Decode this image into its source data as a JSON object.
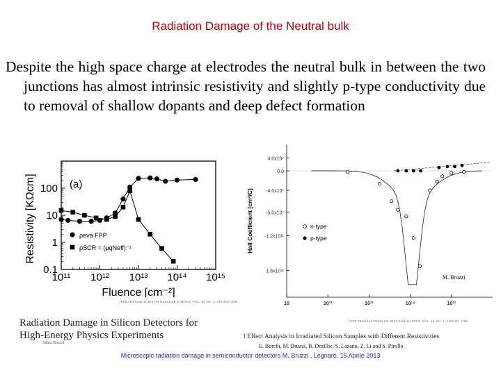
{
  "slide": {
    "title": "Radiation Damage of the Neutral bulk",
    "body": "Despite the high space charge at electrodes the neutral bulk in between the two junctions has almost intrinsic resistivity and slightly p-type conductivity due to removal of shallow dopants and deep defect formation",
    "footer": "Microscopic radiation damage in semiconductor detectors  M. Bruzzi , Legnaro, 15 Aprile 2013"
  },
  "colors": {
    "title": "#c00000",
    "footer": "#2a2aa0"
  },
  "left_paper": {
    "journal_header": "IEEE TRANSACTIONS ON NUCLEAR SCIENCE, VOL. 49, NO. 4, AUGUST 2002",
    "title_line1": "Radiation Damage in Silicon Detectors for",
    "title_line2": "High-Energy Physics Experiments",
    "author": "Mara Bruzzi"
  },
  "right_paper": {
    "journal_header": "IEEE TRANSACTIONS ON NUCLEAR SCIENCE, VOL. 46, NO. 4, AUGUST 1999",
    "title": "l Effect Analysis in Irradiated Silicon Samples with Different Resistivities",
    "authors": "E. Borchi, M. Bruzzi, B. Dezillie, S. Lazanu, Z. Li and S. Pirollo"
  },
  "chart_data": [
    {
      "type": "scatter",
      "panel_label": "(a)",
      "xlabel": "Fluence [cm⁻²]",
      "ylabel": "Resistivity [KΩcm]",
      "x_scale": "log",
      "y_scale": "log",
      "xlim": [
        100000000000.0,
        1000000000000000.0
      ],
      "ylim": [
        0.1,
        1000
      ],
      "x_ticks": [
        "10¹¹",
        "10¹²",
        "10¹³",
        "10¹⁴",
        "10¹⁵"
      ],
      "y_ticks": [
        "0.1",
        "1",
        "10",
        "100"
      ],
      "legend": {
        "placement": "bottom-left",
        "entries": [
          "ρeva FPP",
          "ρSCR = (μqNeff)⁻¹"
        ]
      },
      "series": [
        {
          "name": "ρeva FPP",
          "marker": "circle-filled",
          "x": [
            100000000000.0,
            150000000000.0,
            300000000000.0,
            600000000000.0,
            1000000000000.0,
            1500000000000.0,
            2500000000000.0,
            4000000000000.0,
            6000000000000.0,
            10000000000000.0,
            20000000000000.0,
            30000000000000.0,
            50000000000000.0,
            100000000000000.0,
            300000000000000.0
          ],
          "y": [
            7,
            6.5,
            6,
            6,
            6.5,
            8,
            12,
            40,
            110,
            230,
            240,
            220,
            180,
            200,
            210
          ]
        },
        {
          "name": "ρSCR = (μqNeff)⁻¹",
          "marker": "square-filled",
          "x": [
            100000000000.0,
            200000000000.0,
            400000000000.0,
            800000000000.0,
            1500000000000.0,
            2500000000000.0,
            4000000000000.0,
            6000000000000.0,
            10000000000000.0,
            20000000000000.0,
            40000000000000.0,
            80000000000000.0
          ],
          "y": [
            15,
            13,
            10,
            8,
            7,
            9,
            20,
            80,
            7,
            2,
            0.6,
            0.2
          ]
        }
      ]
    },
    {
      "type": "scatter",
      "xlabel": "",
      "ylabel": "Hall Coefficient [cm³/C]",
      "x_scale": "log",
      "xlim": [
        10000000000.0,
        1000000000000000.0
      ],
      "ylim": [
        -180000000000.0,
        40000000.0
      ],
      "x_ticks": [
        "10",
        "10¹²",
        "10¹³",
        "10¹⁴",
        "10¹³"
      ],
      "y_ticks": [
        "4.0x10⁷",
        "0.0",
        "-4.0x10⁷",
        "-5.0x10⁷",
        "-1.2x10¹¹",
        "1.8x10¹¹"
      ],
      "legend": {
        "placement": "center-right",
        "entries": [
          "n-type",
          "p-type"
        ]
      },
      "annotation": "M. Bruzzi",
      "series": [
        {
          "name": "n-type",
          "marker": "circle-open",
          "x": [
            300000000000.0,
            1800000000000.0,
            3500000000000.0,
            5000000000000.0,
            8000000000000.0,
            12000000000000.0,
            17000000000000.0,
            30000000000000.0,
            45000000000000.0,
            60000000000000.0,
            100000000000000.0,
            200000000000000.0
          ],
          "y": [
            -0.01,
            -0.12,
            -0.28,
            -0.36,
            -0.42,
            -0.62,
            -0.88,
            -0.18,
            -0.1,
            -0.05,
            -0.02,
            -0.01
          ]
        },
        {
          "name": "p-type",
          "marker": "circle-filled",
          "x": [
            5000000000000.0,
            8000000000000.0,
            12000000000000.0,
            18000000000000.0,
            50000000000000.0,
            80000000000000.0,
            120000000000000.0,
            180000000000000.0
          ],
          "y": [
            0.0,
            0.0,
            0.0,
            0.0,
            0.03,
            0.04,
            0.04,
            0.05
          ]
        }
      ]
    }
  ]
}
